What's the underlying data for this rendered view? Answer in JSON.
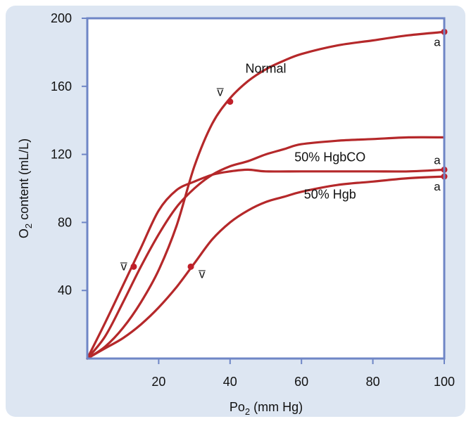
{
  "chart_data": {
    "type": "line",
    "title": "",
    "xlabel_main": "Po",
    "xlabel_sub": "2",
    "xlabel_tail": " (mm Hg)",
    "ylabel_main": "O",
    "ylabel_sub": "2",
    "ylabel_tail": " content (mL/L)",
    "xlim": [
      0,
      100
    ],
    "ylim": [
      0,
      200
    ],
    "x_ticks": [
      20,
      40,
      60,
      80,
      100
    ],
    "y_ticks": [
      40,
      80,
      120,
      160,
      200
    ],
    "grid": false,
    "colors": {
      "panel": "#dde6f2",
      "axis": "#6f86c6",
      "curve": "#b5282a",
      "point": "#c0202a"
    },
    "series": [
      {
        "name": "Normal",
        "label_x": 50,
        "label_y": 168,
        "x": [
          0,
          5,
          10,
          15,
          20,
          25,
          30,
          35,
          40,
          45,
          50,
          55,
          60,
          70,
          80,
          90,
          100
        ],
        "values": [
          0,
          7,
          18,
          33,
          52,
          78,
          113,
          138,
          153,
          163,
          170,
          175,
          179,
          184,
          187,
          190,
          192
        ],
        "points": [
          {
            "x": 40,
            "y": 151,
            "label": "v̅",
            "label_side": "upper-left"
          },
          {
            "x": 100,
            "y": 192,
            "label": "a",
            "label_side": "lower-left"
          }
        ]
      },
      {
        "name": "50% HgbCO",
        "label_x": 68,
        "label_y": 116,
        "x": [
          0,
          5,
          10,
          15,
          20,
          25,
          30,
          35,
          40,
          45,
          50,
          60,
          70,
          80,
          90,
          100
        ],
        "values": [
          0,
          21,
          43,
          65,
          87,
          99,
          104,
          108,
          110,
          111,
          110,
          110,
          110,
          110,
          110,
          111
        ],
        "points": [
          {
            "x": 100,
            "y": 111,
            "label": "a",
            "label_side": "upper-left"
          }
        ]
      },
      {
        "name": "50% Hgb",
        "label_x": 68,
        "label_y": 94,
        "x": [
          0,
          5,
          10,
          15,
          20,
          25,
          30,
          35,
          40,
          45,
          50,
          55,
          60,
          70,
          80,
          90,
          100
        ],
        "values": [
          0,
          13,
          33,
          54,
          73,
          89,
          100,
          108,
          113,
          116,
          120,
          123,
          126,
          128,
          129,
          130,
          130
        ],
        "points": [
          {
            "x": 13,
            "y": 54,
            "label": "v̅",
            "label_side": "left"
          }
        ]
      },
      {
        "name": "",
        "label_x": null,
        "label_y": null,
        "x": [
          0,
          5,
          10,
          15,
          20,
          25,
          30,
          35,
          40,
          45,
          50,
          55,
          60,
          70,
          80,
          90,
          100
        ],
        "values": [
          0,
          6,
          12,
          20,
          30,
          42,
          56,
          70,
          80,
          87,
          92,
          95,
          98,
          102,
          104,
          106,
          107
        ],
        "points": [
          {
            "x": 29,
            "y": 54,
            "label": "v̅",
            "label_side": "lower-right"
          },
          {
            "x": 100,
            "y": 107,
            "label": "a",
            "label_side": "lower-left"
          }
        ]
      }
    ]
  }
}
